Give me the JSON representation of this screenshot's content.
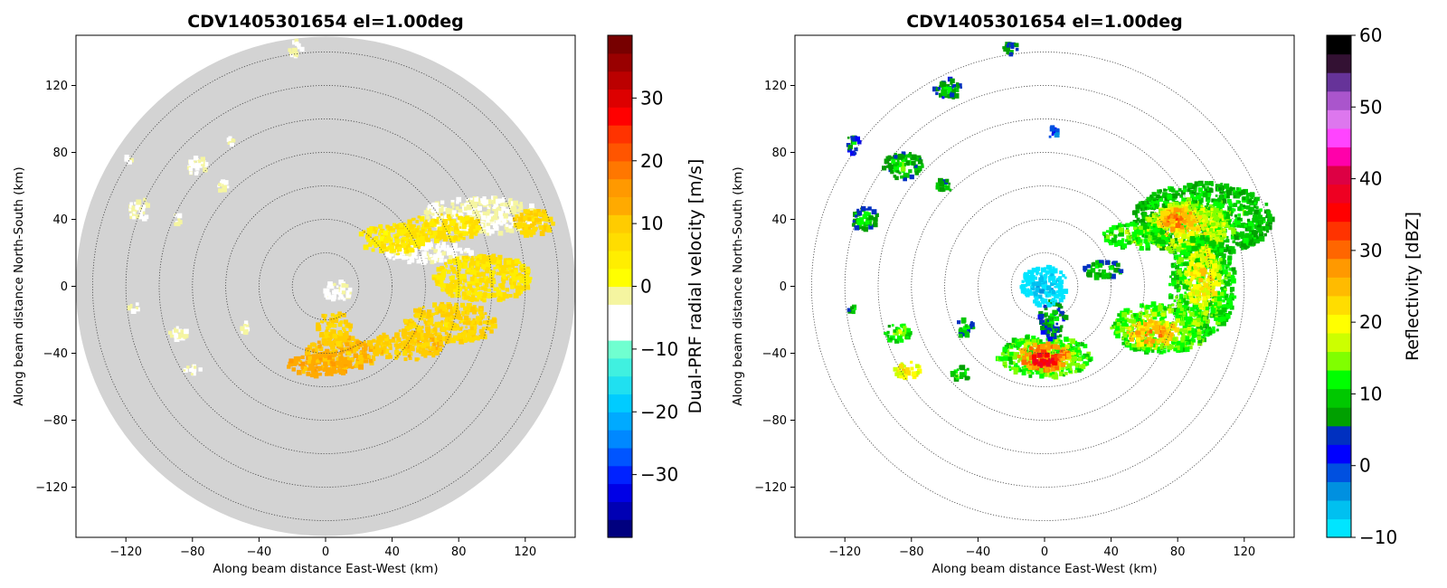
{
  "chart_data": [
    {
      "type": "heatmap",
      "title": "CDV1405301654 el=1.00deg",
      "xlabel": "Along beam distance East-West (km)",
      "ylabel": "Along beam distance North-South (km)",
      "xlim": [
        -150,
        150
      ],
      "ylim": [
        -150,
        150
      ],
      "xticks": [
        "−120",
        "−80",
        "−40",
        "0",
        "40",
        "80",
        "120"
      ],
      "yticks": [
        "120",
        "80",
        "40",
        "0",
        "−40",
        "−80",
        "−120"
      ],
      "range_rings_km": [
        20,
        40,
        60,
        80,
        100,
        120,
        140
      ],
      "max_range_km": 150,
      "background_disc_color": "#d3d3d3",
      "colorbar": {
        "label": "Dual-PRF radial velocity [m/s]",
        "ticks": [
          "30",
          "20",
          "10",
          "0",
          "−10",
          "−20",
          "−30"
        ],
        "range": [
          -40,
          40
        ],
        "colors": [
          "#00007f",
          "#0000b4",
          "#0000e6",
          "#0022ff",
          "#0055ff",
          "#0088ff",
          "#00aaff",
          "#00ccff",
          "#20e0f0",
          "#40f0e0",
          "#70ffd0",
          "#ffffff",
          "#ffffff",
          "#f5f5a0",
          "#ffff00",
          "#ffee00",
          "#ffdd00",
          "#ffcc00",
          "#ffaa00",
          "#ff9900",
          "#ff7700",
          "#ff5500",
          "#ff3300",
          "#ff0000",
          "#dd0000",
          "#bb0000",
          "#990000",
          "#770000"
        ]
      },
      "echo_regions": [
        {
          "x": 95,
          "y": 42,
          "rx": 38,
          "ry": 11,
          "value": -3
        },
        {
          "x": 60,
          "y": 20,
          "rx": 28,
          "ry": 6,
          "value": -4
        },
        {
          "x": 40,
          "y": 28,
          "rx": 20,
          "ry": 9,
          "value": 5
        },
        {
          "x": 70,
          "y": 35,
          "rx": 25,
          "ry": 8,
          "value": 6
        },
        {
          "x": 125,
          "y": 38,
          "rx": 12,
          "ry": 8,
          "value": 8
        },
        {
          "x": 95,
          "y": 5,
          "rx": 30,
          "ry": 14,
          "value": 6
        },
        {
          "x": 75,
          "y": -22,
          "rx": 28,
          "ry": 12,
          "value": 8
        },
        {
          "x": 50,
          "y": -35,
          "rx": 22,
          "ry": 9,
          "value": 10
        },
        {
          "x": 10,
          "y": -40,
          "rx": 22,
          "ry": 10,
          "value": 11
        },
        {
          "x": 5,
          "y": -25,
          "rx": 10,
          "ry": 10,
          "value": 9
        },
        {
          "x": -3,
          "y": -47,
          "rx": 20,
          "ry": 7,
          "value": 13
        },
        {
          "x": 7,
          "y": -3,
          "rx": 8,
          "ry": 6,
          "value": -4
        },
        {
          "x": -18,
          "y": 142,
          "rx": 4,
          "ry": 5,
          "value": -3
        },
        {
          "x": -78,
          "y": 72,
          "rx": 7,
          "ry": 5,
          "value": -3
        },
        {
          "x": -112,
          "y": 46,
          "rx": 6,
          "ry": 7,
          "value": -3
        },
        {
          "x": -90,
          "y": 40,
          "rx": 4,
          "ry": 3,
          "value": -3
        },
        {
          "x": -62,
          "y": 60,
          "rx": 4,
          "ry": 3,
          "value": -3
        },
        {
          "x": -88,
          "y": -28,
          "rx": 6,
          "ry": 4,
          "value": -3
        },
        {
          "x": -48,
          "y": -25,
          "rx": 4,
          "ry": 4,
          "value": -3
        },
        {
          "x": -80,
          "y": -50,
          "rx": 5,
          "ry": 3,
          "value": -3
        },
        {
          "x": -115,
          "y": -12,
          "rx": 3,
          "ry": 3,
          "value": -3
        },
        {
          "x": -118,
          "y": 76,
          "rx": 2,
          "ry": 4,
          "value": -3
        },
        {
          "x": -57,
          "y": 86,
          "rx": 3,
          "ry": 3,
          "value": -3
        }
      ]
    },
    {
      "type": "heatmap",
      "title": "CDV1405301654 el=1.00deg",
      "xlabel": "Along beam distance East-West (km)",
      "ylabel": "Along beam distance North-South (km)",
      "xlim": [
        -150,
        150
      ],
      "ylim": [
        -150,
        150
      ],
      "xticks": [
        "−120",
        "−80",
        "−40",
        "0",
        "40",
        "80",
        "120"
      ],
      "yticks": [
        "120",
        "80",
        "40",
        "0",
        "−40",
        "−80",
        "−120"
      ],
      "range_rings_km": [
        20,
        40,
        60,
        80,
        100,
        120,
        140
      ],
      "max_range_km": 150,
      "background_disc_color": "",
      "colorbar": {
        "label": "Reflectivity [dBZ]",
        "ticks": [
          "60",
          "50",
          "40",
          "30",
          "20",
          "10",
          "0",
          "−10"
        ],
        "range": [
          -10,
          60
        ],
        "colors": [
          "#00e5ff",
          "#00c0f0",
          "#0090e0",
          "#0050e0",
          "#0000ff",
          "#0030c0",
          "#00a000",
          "#00c800",
          "#00ff00",
          "#80ff00",
          "#ccff00",
          "#ffff00",
          "#ffdd00",
          "#ffbb00",
          "#ff9900",
          "#ff6600",
          "#ff3300",
          "#ff0000",
          "#ee0022",
          "#dd0044",
          "#ff00aa",
          "#ff44ff",
          "#dd77ee",
          "#aa55cc",
          "#663399",
          "#331133",
          "#000000"
        ]
      },
      "echo_regions": [
        {
          "x": 95,
          "y": 40,
          "rx": 42,
          "ry": 22,
          "value": 14
        },
        {
          "x": 85,
          "y": 35,
          "rx": 25,
          "ry": 15,
          "value": 22
        },
        {
          "x": 80,
          "y": 40,
          "rx": 12,
          "ry": 7,
          "value": 30
        },
        {
          "x": 95,
          "y": 0,
          "rx": 20,
          "ry": 30,
          "value": 16
        },
        {
          "x": 95,
          "y": 5,
          "rx": 10,
          "ry": 18,
          "value": 24
        },
        {
          "x": 70,
          "y": -25,
          "rx": 30,
          "ry": 15,
          "value": 18
        },
        {
          "x": 65,
          "y": -28,
          "rx": 15,
          "ry": 8,
          "value": 28
        },
        {
          "x": 55,
          "y": 30,
          "rx": 20,
          "ry": 8,
          "value": 16
        },
        {
          "x": 35,
          "y": 10,
          "rx": 12,
          "ry": 5,
          "value": 12
        },
        {
          "x": 0,
          "y": -42,
          "rx": 28,
          "ry": 13,
          "value": 18
        },
        {
          "x": 0,
          "y": -42,
          "rx": 16,
          "ry": 8,
          "value": 33
        },
        {
          "x": 0,
          "y": -44,
          "rx": 7,
          "ry": 5,
          "value": 40
        },
        {
          "x": 5,
          "y": -20,
          "rx": 8,
          "ry": 12,
          "value": 10
        },
        {
          "x": 0,
          "y": 0,
          "rx": 14,
          "ry": 12,
          "value": -6
        },
        {
          "x": -85,
          "y": 72,
          "rx": 12,
          "ry": 8,
          "value": 12
        },
        {
          "x": -108,
          "y": 40,
          "rx": 8,
          "ry": 7,
          "value": 12
        },
        {
          "x": -88,
          "y": -28,
          "rx": 8,
          "ry": 6,
          "value": 16
        },
        {
          "x": -82,
          "y": -50,
          "rx": 8,
          "ry": 5,
          "value": 24
        },
        {
          "x": -50,
          "y": -52,
          "rx": 6,
          "ry": 4,
          "value": 14
        },
        {
          "x": -48,
          "y": -25,
          "rx": 6,
          "ry": 5,
          "value": 12
        },
        {
          "x": -20,
          "y": 142,
          "rx": 5,
          "ry": 4,
          "value": 10
        },
        {
          "x": -58,
          "y": 118,
          "rx": 8,
          "ry": 6,
          "value": 10
        },
        {
          "x": -115,
          "y": 85,
          "rx": 4,
          "ry": 6,
          "value": 10
        },
        {
          "x": -115,
          "y": -13,
          "rx": 3,
          "ry": 3,
          "value": 12
        },
        {
          "x": -60,
          "y": 60,
          "rx": 5,
          "ry": 4,
          "value": 12
        },
        {
          "x": 5,
          "y": 92,
          "rx": 4,
          "ry": 3,
          "value": 4
        }
      ]
    }
  ]
}
